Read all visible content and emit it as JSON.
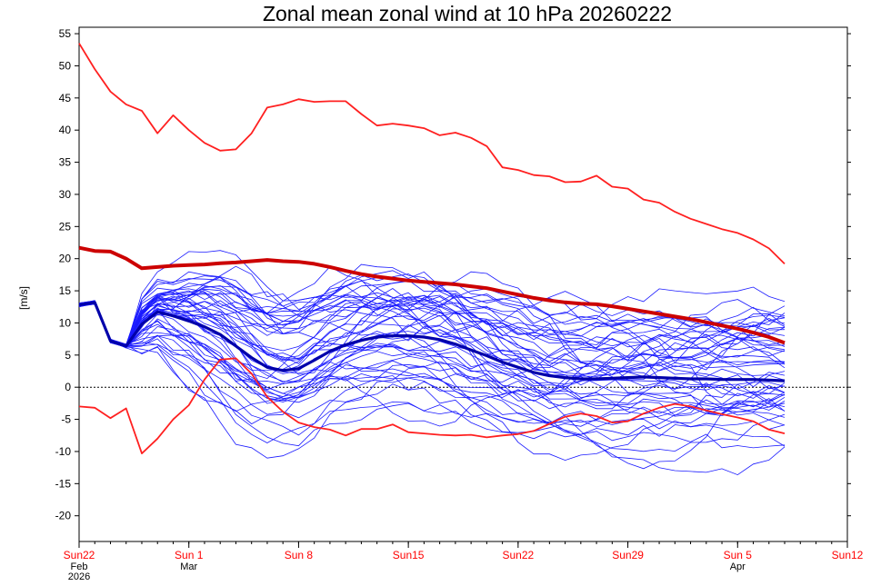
{
  "chart_data": {
    "type": "line",
    "title": "Zonal mean zonal wind at 10 hPa 20260222",
    "xlabel": "",
    "ylabel": "[m/s]",
    "ylim": [
      -24,
      56
    ],
    "yticks": [
      -20,
      -15,
      -10,
      -5,
      0,
      5,
      10,
      15,
      20,
      25,
      30,
      35,
      40,
      45,
      50,
      55
    ],
    "xlim": [
      "2026-02-22",
      "2026-04-12"
    ],
    "xticks": [
      {
        "date": "2026-02-22",
        "label": "Sun22",
        "sub1": "Feb",
        "sub2": "2026"
      },
      {
        "date": "2026-03-01",
        "label": "Sun 1",
        "sub1": "Mar",
        "sub2": ""
      },
      {
        "date": "2026-03-08",
        "label": "Sun 8",
        "sub1": "",
        "sub2": ""
      },
      {
        "date": "2026-03-15",
        "label": "Sun15",
        "sub1": "",
        "sub2": ""
      },
      {
        "date": "2026-03-22",
        "label": "Sun22",
        "sub1": "",
        "sub2": ""
      },
      {
        "date": "2026-03-29",
        "label": "Sun29",
        "sub1": "",
        "sub2": ""
      },
      {
        "date": "2026-04-05",
        "label": "Sun 5",
        "sub1": "Apr",
        "sub2": ""
      },
      {
        "date": "2026-04-12",
        "label": "Sun12",
        "sub1": "",
        "sub2": ""
      }
    ],
    "zero_line": true,
    "colors": {
      "ensemble": "#1a1aff",
      "climatology_extremes": "#ff2020",
      "climatology_mean": "#cc0000",
      "ensemble_mean": "#0000aa",
      "tick_labels_x": "#ff0000"
    },
    "series": [
      {
        "role": "climatology-max",
        "x": [
          "2026-02-22",
          "2026-02-23",
          "2026-02-24",
          "2026-02-25",
          "2026-02-26",
          "2026-02-27",
          "2026-02-28",
          "2026-03-01",
          "2026-03-02",
          "2026-03-03",
          "2026-03-04",
          "2026-03-05",
          "2026-03-06",
          "2026-03-07",
          "2026-03-08",
          "2026-03-09",
          "2026-03-10",
          "2026-03-11",
          "2026-03-12",
          "2026-03-13",
          "2026-03-14",
          "2026-03-15",
          "2026-03-16",
          "2026-03-17",
          "2026-03-18",
          "2026-03-19",
          "2026-03-20",
          "2026-03-21",
          "2026-03-22",
          "2026-03-23",
          "2026-03-24",
          "2026-03-25",
          "2026-03-26",
          "2026-03-27",
          "2026-03-28",
          "2026-03-29",
          "2026-03-30",
          "2026-03-31",
          "2026-04-01",
          "2026-04-02",
          "2026-04-03",
          "2026-04-04",
          "2026-04-05",
          "2026-04-06",
          "2026-04-07",
          "2026-04-08"
        ],
        "y": [
          53.5,
          49.5,
          46,
          44,
          43,
          39.5,
          42.3,
          40,
          38,
          36.8,
          37,
          39.5,
          43.5,
          44,
          44.8,
          44.4,
          44.5,
          44.5,
          42.5,
          40.7,
          41,
          40.7,
          40.3,
          39.2,
          39.6,
          38.8,
          37.5,
          34.2,
          33.8,
          33,
          32.8,
          31.9,
          32,
          32.9,
          31.2,
          30.9,
          29.2,
          28.7,
          27.3,
          26.2,
          25.4,
          24.6,
          24,
          23,
          21.6,
          19.2
        ]
      },
      {
        "role": "climatology-mean",
        "x": [
          "2026-02-22",
          "2026-02-23",
          "2026-02-24",
          "2026-02-25",
          "2026-02-26",
          "2026-02-27",
          "2026-02-28",
          "2026-03-01",
          "2026-03-02",
          "2026-03-03",
          "2026-03-04",
          "2026-03-05",
          "2026-03-06",
          "2026-03-07",
          "2026-03-08",
          "2026-03-09",
          "2026-03-10",
          "2026-03-11",
          "2026-03-12",
          "2026-03-13",
          "2026-03-14",
          "2026-03-15",
          "2026-03-16",
          "2026-03-17",
          "2026-03-18",
          "2026-03-19",
          "2026-03-20",
          "2026-03-21",
          "2026-03-22",
          "2026-03-23",
          "2026-03-24",
          "2026-03-25",
          "2026-03-26",
          "2026-03-27",
          "2026-03-28",
          "2026-03-29",
          "2026-03-30",
          "2026-03-31",
          "2026-04-01",
          "2026-04-02",
          "2026-04-03",
          "2026-04-04",
          "2026-04-05",
          "2026-04-06",
          "2026-04-07",
          "2026-04-08"
        ],
        "y": [
          21.7,
          21.2,
          21.1,
          20,
          18.5,
          18.7,
          18.9,
          19,
          19.1,
          19.3,
          19.4,
          19.6,
          19.8,
          19.6,
          19.5,
          19.2,
          18.7,
          18.1,
          17.6,
          17.2,
          16.9,
          16.6,
          16.4,
          16.2,
          16.0,
          15.7,
          15.4,
          14.9,
          14.4,
          13.9,
          13.5,
          13.2,
          13.0,
          12.9,
          12.6,
          12.2,
          11.8,
          11.4,
          11.0,
          10.6,
          10.1,
          9.6,
          9.1,
          8.5,
          7.8,
          6.9
        ]
      },
      {
        "role": "climatology-min",
        "x": [
          "2026-02-22",
          "2026-02-23",
          "2026-02-24",
          "2026-02-25",
          "2026-02-26",
          "2026-02-27",
          "2026-02-28",
          "2026-03-01",
          "2026-03-02",
          "2026-03-03",
          "2026-03-04",
          "2026-03-05",
          "2026-03-06",
          "2026-03-07",
          "2026-03-08",
          "2026-03-09",
          "2026-03-10",
          "2026-03-11",
          "2026-03-12",
          "2026-03-13",
          "2026-03-14",
          "2026-03-15",
          "2026-03-16",
          "2026-03-17",
          "2026-03-18",
          "2026-03-19",
          "2026-03-20",
          "2026-03-21",
          "2026-03-22",
          "2026-03-23",
          "2026-03-24",
          "2026-03-25",
          "2026-03-26",
          "2026-03-27",
          "2026-03-28",
          "2026-03-29",
          "2026-03-30",
          "2026-03-31",
          "2026-04-01",
          "2026-04-02",
          "2026-04-03",
          "2026-04-04",
          "2026-04-05",
          "2026-04-06",
          "2026-04-07",
          "2026-04-08"
        ],
        "y": [
          -3,
          -3.2,
          -4.8,
          -3.3,
          -10.3,
          -8,
          -5,
          -2.8,
          1.2,
          4.3,
          4.5,
          2.1,
          -1.5,
          -3.8,
          -5.5,
          -6.2,
          -6.6,
          -7.5,
          -6.5,
          -6.5,
          -5.8,
          -7,
          -7.2,
          -7.4,
          -7.5,
          -7.4,
          -7.8,
          -7.5,
          -7.3,
          -6.8,
          -5.7,
          -4.6,
          -4.1,
          -4.5,
          -5.5,
          -5.3,
          -4.1,
          -3.2,
          -2.6,
          -3,
          -3.6,
          -4.2,
          -4.7,
          -5.3,
          -6.6,
          -7.2
        ]
      },
      {
        "role": "ensemble-mean",
        "x": [
          "2026-02-22",
          "2026-02-23",
          "2026-02-24",
          "2026-02-25",
          "2026-02-26",
          "2026-02-27",
          "2026-02-28",
          "2026-03-01",
          "2026-03-02",
          "2026-03-03",
          "2026-03-04",
          "2026-03-05",
          "2026-03-06",
          "2026-03-07",
          "2026-03-08",
          "2026-03-09",
          "2026-03-10",
          "2026-03-11",
          "2026-03-12",
          "2026-03-13",
          "2026-03-14",
          "2026-03-15",
          "2026-03-16",
          "2026-03-17",
          "2026-03-18",
          "2026-03-19",
          "2026-03-20",
          "2026-03-21",
          "2026-03-22",
          "2026-03-23",
          "2026-03-24",
          "2026-03-25",
          "2026-03-26",
          "2026-03-27",
          "2026-03-28",
          "2026-03-29",
          "2026-03-30",
          "2026-03-31",
          "2026-04-01",
          "2026-04-02",
          "2026-04-03",
          "2026-04-04",
          "2026-04-05",
          "2026-04-06",
          "2026-04-07",
          "2026-04-08"
        ],
        "y": [
          12.8,
          13.2,
          7.2,
          6.4,
          9.8,
          11.7,
          11.1,
          10.3,
          9.4,
          8.2,
          6.4,
          4.6,
          3.1,
          2.6,
          2.9,
          4.2,
          5.6,
          6.6,
          7.3,
          7.8,
          8.0,
          8.0,
          7.8,
          7.4,
          6.7,
          5.8,
          4.9,
          3.9,
          3.1,
          2.3,
          1.8,
          1.5,
          1.3,
          1.3,
          1.4,
          1.5,
          1.6,
          1.5,
          1.4,
          1.3,
          1.3,
          1.2,
          1.2,
          1.2,
          1.1,
          1.0
        ]
      }
    ],
    "ensemble": {
      "members": 50,
      "start": "2026-02-22",
      "end": "2026-04-08",
      "note": ""
    }
  }
}
